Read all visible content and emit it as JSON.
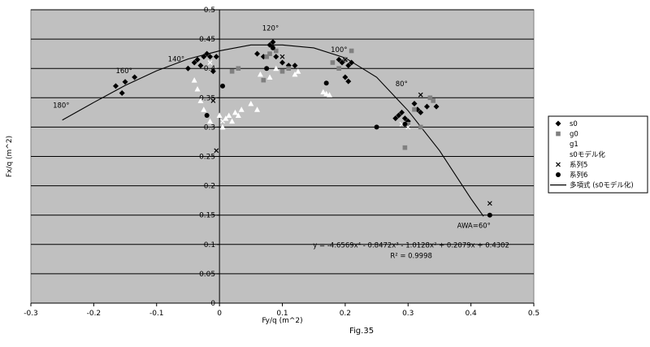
{
  "figure_caption": "Fig.35",
  "chart_data": {
    "type": "scatter",
    "xlabel": "Fy/q (m^2)",
    "ylabel": "Fx/q (m^2)",
    "xlim": [
      -0.3,
      0.5
    ],
    "ylim": [
      0,
      0.5
    ],
    "x_ticks": [
      -0.3,
      -0.2,
      -0.1,
      0,
      0.1,
      0.2,
      0.3,
      0.4,
      0.5
    ],
    "y_ticks": [
      0,
      0.05,
      0.1,
      0.15,
      0.2,
      0.25,
      0.3,
      0.35,
      0.4,
      0.45,
      0.5
    ],
    "x_tick_labels": [
      "-0.3",
      "-0.2",
      "-0.1",
      "0",
      "0.1",
      "0.2",
      "0.3",
      "0.4",
      "0.5"
    ],
    "y_tick_labels": [
      "0",
      "0.05",
      "0.1",
      "0.15",
      "0.2",
      "0.25",
      "0.3",
      "0.35",
      "0.4",
      "0.45",
      "0.5"
    ],
    "grid": "horizontal",
    "plot_background": "#c0c0c0",
    "legend_position": "right",
    "series": [
      {
        "name": "s0",
        "marker": "diamond",
        "color": "#000000",
        "x": [
          -0.165,
          -0.155,
          -0.15,
          -0.135,
          -0.05,
          -0.04,
          -0.035,
          -0.03,
          -0.025,
          -0.02,
          -0.015,
          -0.01,
          -0.005,
          0.06,
          0.07,
          0.08,
          0.085,
          0.09,
          0.1,
          0.11,
          0.12,
          0.19,
          0.195,
          0.2,
          0.205,
          0.21,
          0.2,
          0.205,
          0.28,
          0.285,
          0.29,
          0.295,
          0.3,
          0.31,
          0.315,
          0.32,
          0.33,
          0.345
        ],
        "y": [
          0.37,
          0.358,
          0.377,
          0.385,
          0.4,
          0.41,
          0.415,
          0.405,
          0.42,
          0.425,
          0.42,
          0.395,
          0.42,
          0.425,
          0.42,
          0.44,
          0.445,
          0.42,
          0.41,
          0.405,
          0.405,
          0.415,
          0.41,
          0.415,
          0.405,
          0.41,
          0.385,
          0.378,
          0.315,
          0.32,
          0.325,
          0.315,
          0.31,
          0.34,
          0.33,
          0.325,
          0.335,
          0.335
        ]
      },
      {
        "name": "g0",
        "marker": "square",
        "color": "#808080",
        "x": [
          0.02,
          0.03,
          0.07,
          0.075,
          0.08,
          0.09,
          0.1,
          0.11,
          0.18,
          0.19,
          0.2,
          0.21,
          0.3,
          0.31,
          0.32,
          0.335,
          0.34,
          0.295
        ],
        "y": [
          0.395,
          0.4,
          0.38,
          0.42,
          0.425,
          0.43,
          0.395,
          0.4,
          0.41,
          0.4,
          0.415,
          0.43,
          0.305,
          0.33,
          0.3,
          0.35,
          0.345,
          0.265
        ]
      },
      {
        "name": "g1",
        "marker": "triangle",
        "color": "#ffffff",
        "x": [
          -0.04,
          -0.035,
          -0.03,
          -0.025,
          -0.015,
          0,
          0.005,
          0.01,
          0.015,
          0.02,
          0.025,
          0.03,
          0.035,
          0.05,
          0.06,
          0.065,
          0.08,
          0.09,
          0.12,
          0.125,
          0.165,
          0.17,
          0.175
        ],
        "y": [
          0.38,
          0.365,
          0.345,
          0.33,
          0.31,
          0.32,
          0.3,
          0.315,
          0.32,
          0.31,
          0.325,
          0.32,
          0.33,
          0.34,
          0.33,
          0.39,
          0.385,
          0.4,
          0.39,
          0.395,
          0.36,
          0.357,
          0.355
        ]
      },
      {
        "name": "s0モデル化",
        "marker": "x",
        "color": "#ffffff",
        "x": [
          -0.015,
          0.005,
          0.29,
          0.3
        ],
        "y": [
          0.41,
          0.31,
          0.305,
          0.3
        ]
      },
      {
        "name": "系列5",
        "marker": "x",
        "color": "#000000",
        "x": [
          -0.01,
          -0.005,
          0.1,
          0.2,
          0.32,
          0.43
        ],
        "y": [
          0.345,
          0.26,
          0.42,
          0.415,
          0.355,
          0.17
        ]
      },
      {
        "name": "系列6",
        "marker": "circle",
        "color": "#000000",
        "x": [
          -0.02,
          0.005,
          0.075,
          0.085,
          0.17,
          0.25,
          0.295,
          0.43
        ],
        "y": [
          0.32,
          0.37,
          0.4,
          0.435,
          0.375,
          0.3,
          0.305,
          0.15
        ]
      },
      {
        "name": "多項式 (s0モデル化)",
        "marker": "line",
        "color": "#000000",
        "x": [
          -0.25,
          -0.2,
          -0.15,
          -0.1,
          -0.05,
          0,
          0.05,
          0.1,
          0.15,
          0.2,
          0.25,
          0.3,
          0.35,
          0.4,
          0.42
        ],
        "y": [
          0.312,
          0.342,
          0.371,
          0.396,
          0.416,
          0.43,
          0.44,
          0.44,
          0.435,
          0.418,
          0.385,
          0.328,
          0.26,
          0.178,
          0.148
        ]
      }
    ],
    "annotations": [
      {
        "text": "180°",
        "x": -0.265,
        "y": 0.333
      },
      {
        "text": "160°",
        "x": -0.165,
        "y": 0.392
      },
      {
        "text": "140°",
        "x": -0.082,
        "y": 0.412
      },
      {
        "text": "120°",
        "x": 0.068,
        "y": 0.465
      },
      {
        "text": "100°",
        "x": 0.177,
        "y": 0.428
      },
      {
        "text": "80°",
        "x": 0.28,
        "y": 0.37
      },
      {
        "text": "AWA=60°",
        "x": 0.378,
        "y": 0.128
      }
    ],
    "equation": "y = -4.6569x⁴ - 0.8472x³ - 1.0128x² + 0.2079x + 0.4302",
    "r_squared": "R² = 0.9998",
    "equation_position": {
      "x": 0.305,
      "y": 0.095
    },
    "r_squared_position": {
      "x": 0.305,
      "y": 0.077
    }
  }
}
